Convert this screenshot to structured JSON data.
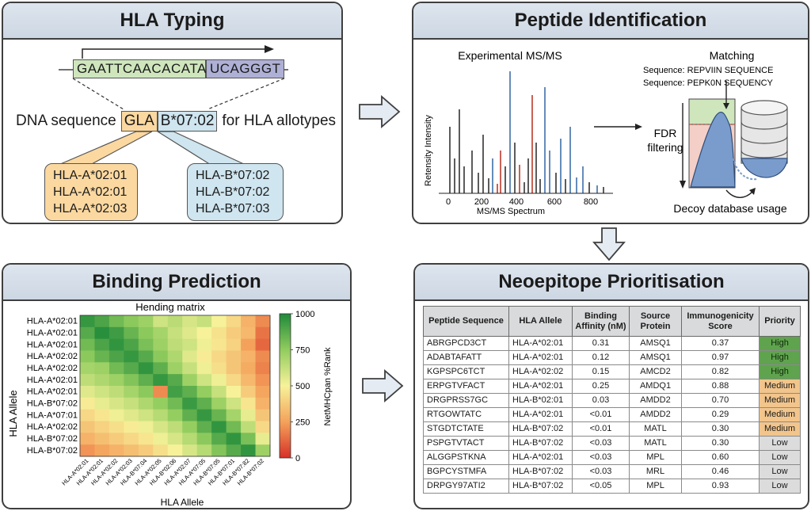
{
  "colors": {
    "header_bg": "#d3dce7",
    "dna_green": "#cfe6bd",
    "dna_purple": "#aeb0d6",
    "orange_box": "#fbd8a0",
    "blue_box": "#cfe5ef",
    "red_peak": "#c0392b",
    "blue_peak": "#3f6fa8"
  },
  "hla": {
    "title": "HLA Typing",
    "seq_left": "GAATTCAACACATA",
    "seq_right": "UCAGGGT",
    "dna_prefix": "DNA sequence",
    "dna_mid1": "GLA",
    "dna_mid2": "B*07:02",
    "dna_suffix": "for HLA allotypes",
    "left_alleles": [
      "HLA-A*02:01",
      "HLA-A*02:01",
      "HLA-A*02:03"
    ],
    "right_alleles": [
      "HLA-B*07:02",
      "HLA-B*07:02",
      "HLA-B*07:03"
    ]
  },
  "peptide": {
    "title": "Peptide Identification",
    "spectrum_title": "Experimental MS/MS",
    "ylabel": "Retensity Intensity",
    "xlabel": "MS/MS Spectrum",
    "x_ticks": [
      "0",
      "200",
      "400",
      "600",
      "800"
    ],
    "matching_title": "Matching",
    "seq1": "Sequence: REPVIIN SEQUENCE",
    "seq2": "Sequence: PEPK0N SEQUENCY",
    "fdr_line1": "FDR",
    "fdr_line2": "filtering",
    "decoy_label": "Decoy database usage"
  },
  "binding": {
    "title": "Binding Prediction",
    "chart_title": "Hending matrix",
    "ylabel": "HLA Allele",
    "xlabel": "HLA Allele",
    "colorbar_label": "NetMHCpan %Rank",
    "colorbar_ticks": [
      "1000",
      "750",
      "500",
      "250",
      "0"
    ]
  },
  "chart_data": {
    "type": "heatmap",
    "title": "Hending matrix",
    "xlabel": "HLA Allele",
    "ylabel": "HLA Allele",
    "colorbar": {
      "label": "NetMHCpan %Rank",
      "range": [
        0,
        1000
      ],
      "ticks": [
        0,
        250,
        500,
        750,
        1000
      ]
    },
    "rows": [
      "HLA-A*02:01",
      "HLA-A*02:01",
      "HLA-A*02:01",
      "HLA-A*02:02",
      "HLA-A*02:02",
      "HLA-A*02:01",
      "HLA-A*02:01",
      "HLA-B*07:02",
      "HLA-A*07:01",
      "HLA-A*02:02",
      "HLA-B*07:02",
      "HLA-B*07:02"
    ],
    "columns": [
      "HLA-A*02:01",
      "HLA-A*02:01",
      "HLA-A*02:02",
      "HLA-A*02:03",
      "HLA-B*07:04",
      "HLA-A*02:05",
      "HLA-B*02:06",
      "HLA-A*02:07",
      "HLA-A*07:05",
      "HLA-B*07:05",
      "HLA-B*07:01",
      "HLA-B*07:82",
      "HLA-B*07:02"
    ],
    "values": [
      [
        950,
        900,
        820,
        760,
        720,
        600,
        650,
        580,
        620,
        500,
        420,
        300,
        200
      ],
      [
        880,
        980,
        930,
        840,
        760,
        700,
        620,
        560,
        500,
        450,
        380,
        320,
        150
      ],
      [
        820,
        900,
        960,
        900,
        800,
        720,
        640,
        600,
        520,
        460,
        400,
        250,
        120
      ],
      [
        760,
        840,
        900,
        950,
        880,
        760,
        680,
        560,
        480,
        420,
        360,
        300,
        200
      ],
      [
        700,
        720,
        820,
        880,
        960,
        860,
        720,
        620,
        520,
        440,
        360,
        280,
        180
      ],
      [
        640,
        680,
        720,
        780,
        860,
        950,
        880,
        720,
        600,
        520,
        420,
        320,
        220
      ],
      [
        560,
        600,
        640,
        700,
        760,
        200,
        920,
        860,
        740,
        620,
        500,
        380,
        260
      ],
      [
        480,
        540,
        580,
        620,
        680,
        740,
        820,
        940,
        860,
        720,
        600,
        460,
        300
      ],
      [
        420,
        460,
        520,
        560,
        600,
        660,
        740,
        860,
        950,
        840,
        700,
        540,
        360
      ],
      [
        360,
        400,
        440,
        480,
        520,
        580,
        640,
        740,
        860,
        960,
        820,
        640,
        420
      ],
      [
        300,
        340,
        380,
        420,
        460,
        520,
        580,
        660,
        760,
        880,
        960,
        800,
        540
      ],
      [
        220,
        260,
        300,
        340,
        380,
        440,
        500,
        580,
        660,
        780,
        880,
        960,
        720
      ]
    ]
  },
  "neo": {
    "title": "Neoepitope Prioritisation",
    "headers": [
      "Peptide Sequence",
      "HLA Allele",
      "Binding Affinity (nM)",
      "Source Protein",
      "Immunogenicity Score",
      "Priority"
    ],
    "rows": [
      [
        "ABRGPCD3CT",
        "HLA-A*02:01",
        "0.31",
        "AMSQ1",
        "0.37",
        "High"
      ],
      [
        "ADABTAFATT",
        "HLA-A*02:01",
        "0.12",
        "AMSQ1",
        "0.97",
        "High"
      ],
      [
        "KGPSPC6TCT",
        "HLA-A*02:02",
        "0.15",
        "AMCD2",
        "0.82",
        "High"
      ],
      [
        "ERPGTVFACT",
        "HLA-A*02:01",
        "0.25",
        "AMDQ1",
        "0.88",
        "Medium"
      ],
      [
        "DRGPRSS7GC",
        "HLA-B*02:01",
        "0.03",
        "AMDD2",
        "0.70",
        "Medium"
      ],
      [
        "RTGOWTATC",
        "HLA-A*02:01",
        "<0.01",
        "AMDD2",
        "0.29",
        "Medium"
      ],
      [
        "STGDTCTATE",
        "HLA-B*07:02",
        "<0.01",
        "MATL",
        "0.30",
        "Medium"
      ],
      [
        "PSPGTVTACT",
        "HLA-B*07:02",
        "<0.03",
        "MATL",
        "0.30",
        "Low"
      ],
      [
        "ALGGPSTKNA",
        "HLA-A*02:01",
        "<0.03",
        "MPL",
        "0.60",
        "Low"
      ],
      [
        "BGPCYSTMFA",
        "HLA-B*07:02",
        "<0.03",
        "MRL",
        "0.46",
        "Low"
      ],
      [
        "DRPGY97ATI2",
        "HLA-B*07:02",
        "<0.05",
        "MPL",
        "0.93",
        "Low"
      ]
    ]
  }
}
